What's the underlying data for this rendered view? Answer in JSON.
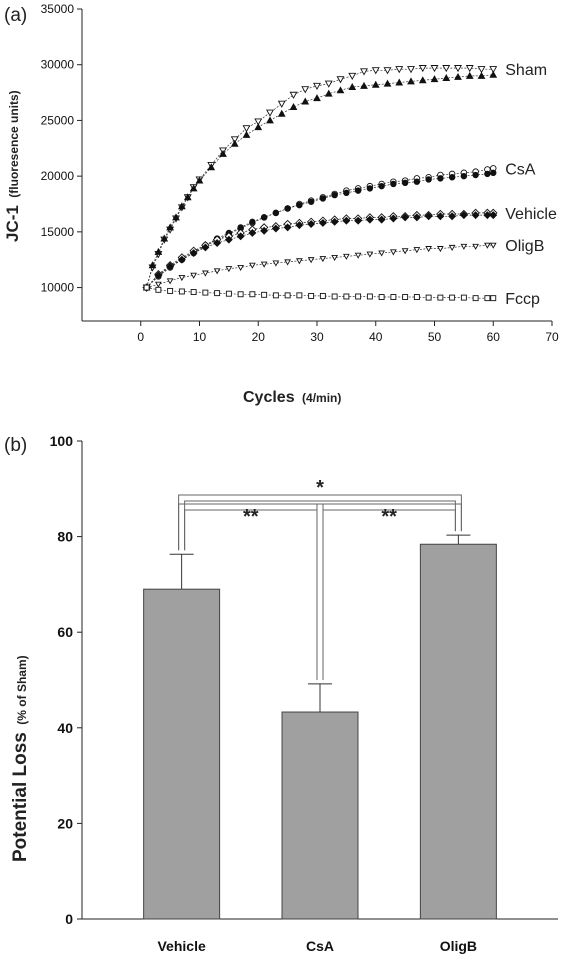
{
  "chart_data": [
    {
      "panel": "(a)",
      "type": "scatter",
      "ylabel_main": "JC-1",
      "ylabel_unit": "(fluoresence units)",
      "xlabel_main": "Cycles",
      "xlabel_unit": "(4/min)",
      "xlim": [
        -10,
        70
      ],
      "ylim": [
        7000,
        35000
      ],
      "xticks": [
        0,
        10,
        20,
        30,
        40,
        50,
        60,
        70
      ],
      "yticks": [
        10000,
        15000,
        20000,
        25000,
        30000,
        35000
      ],
      "series": [
        {
          "name": "Sham",
          "marker": "triangle-down-open",
          "values": [
            [
              1,
              10000
            ],
            [
              2,
              11800
            ],
            [
              3,
              13000
            ],
            [
              4,
              14300
            ],
            [
              5,
              15200
            ],
            [
              6,
              16200
            ],
            [
              7,
              17200
            ],
            [
              8,
              18100
            ],
            [
              9,
              19000
            ],
            [
              10,
              19700
            ],
            [
              12,
              21000
            ],
            [
              14,
              22300
            ],
            [
              16,
              23300
            ],
            [
              18,
              24300
            ],
            [
              20,
              24900
            ],
            [
              22,
              25700
            ],
            [
              24,
              26500
            ],
            [
              26,
              27300
            ],
            [
              28,
              27800
            ],
            [
              30,
              28100
            ],
            [
              32,
              28300
            ],
            [
              34,
              28700
            ],
            [
              36,
              29000
            ],
            [
              38,
              29400
            ],
            [
              40,
              29500
            ],
            [
              42,
              29500
            ],
            [
              44,
              29600
            ],
            [
              46,
              29600
            ],
            [
              48,
              29700
            ],
            [
              50,
              29700
            ],
            [
              52,
              29700
            ],
            [
              54,
              29700
            ],
            [
              56,
              29700
            ],
            [
              58,
              29600
            ],
            [
              60,
              29600
            ]
          ]
        },
        {
          "name": "",
          "marker": "triangle-up-filled",
          "values": [
            [
              1,
              10000
            ],
            [
              2,
              12000
            ],
            [
              3,
              13200
            ],
            [
              4,
              14400
            ],
            [
              5,
              15400
            ],
            [
              6,
              16300
            ],
            [
              7,
              17300
            ],
            [
              8,
              18100
            ],
            [
              9,
              18900
            ],
            [
              10,
              19600
            ],
            [
              12,
              20800
            ],
            [
              14,
              22000
            ],
            [
              16,
              22900
            ],
            [
              18,
              23700
            ],
            [
              20,
              24400
            ],
            [
              22,
              25000
            ],
            [
              24,
              25600
            ],
            [
              26,
              26200
            ],
            [
              28,
              26700
            ],
            [
              30,
              27000
            ],
            [
              32,
              27400
            ],
            [
              34,
              27700
            ],
            [
              36,
              28000
            ],
            [
              38,
              28100
            ],
            [
              40,
              28200
            ],
            [
              42,
              28300
            ],
            [
              44,
              28400
            ],
            [
              46,
              28500
            ],
            [
              48,
              28600
            ],
            [
              50,
              28700
            ],
            [
              52,
              28800
            ],
            [
              54,
              28900
            ],
            [
              56,
              29000
            ],
            [
              58,
              29000
            ],
            [
              60,
              29100
            ]
          ]
        },
        {
          "name": "CsA",
          "marker": "circle-open",
          "values": [
            [
              1,
              10000
            ],
            [
              3,
              11000
            ],
            [
              5,
              11800
            ],
            [
              7,
              12500
            ],
            [
              9,
              13100
            ],
            [
              11,
              13700
            ],
            [
              13,
              14300
            ],
            [
              15,
              14800
            ],
            [
              17,
              15300
            ],
            [
              19,
              15800
            ],
            [
              21,
              16300
            ],
            [
              23,
              16700
            ],
            [
              25,
              17100
            ],
            [
              27,
              17500
            ],
            [
              29,
              17800
            ],
            [
              31,
              18100
            ],
            [
              33,
              18400
            ],
            [
              35,
              18700
            ],
            [
              37,
              18900
            ],
            [
              39,
              19100
            ],
            [
              41,
              19300
            ],
            [
              43,
              19500
            ],
            [
              45,
              19600
            ],
            [
              47,
              19800
            ],
            [
              49,
              19900
            ],
            [
              51,
              20100
            ],
            [
              53,
              20200
            ],
            [
              55,
              20300
            ],
            [
              57,
              20400
            ],
            [
              59,
              20600
            ],
            [
              60,
              20700
            ]
          ]
        },
        {
          "name": "",
          "marker": "circle-filled",
          "values": [
            [
              1,
              10000
            ],
            [
              3,
              11100
            ],
            [
              5,
              11900
            ],
            [
              7,
              12600
            ],
            [
              9,
              13200
            ],
            [
              11,
              13800
            ],
            [
              13,
              14400
            ],
            [
              15,
              14900
            ],
            [
              17,
              15400
            ],
            [
              19,
              15900
            ],
            [
              21,
              16300
            ],
            [
              23,
              16700
            ],
            [
              25,
              17100
            ],
            [
              27,
              17400
            ],
            [
              29,
              17700
            ],
            [
              31,
              18000
            ],
            [
              33,
              18300
            ],
            [
              35,
              18500
            ],
            [
              37,
              18700
            ],
            [
              39,
              18900
            ],
            [
              41,
              19100
            ],
            [
              43,
              19300
            ],
            [
              45,
              19400
            ],
            [
              47,
              19500
            ],
            [
              49,
              19700
            ],
            [
              51,
              19800
            ],
            [
              53,
              19900
            ],
            [
              55,
              20000
            ],
            [
              57,
              20100
            ],
            [
              59,
              20200
            ],
            [
              60,
              20300
            ]
          ]
        },
        {
          "name": "Vehicle",
          "marker": "diamond-open",
          "values": [
            [
              1,
              10000
            ],
            [
              3,
              11200
            ],
            [
              5,
              12000
            ],
            [
              7,
              12700
            ],
            [
              9,
              13300
            ],
            [
              11,
              13800
            ],
            [
              13,
              14300
            ],
            [
              15,
              14600
            ],
            [
              17,
              14900
            ],
            [
              19,
              15200
            ],
            [
              21,
              15400
            ],
            [
              23,
              15500
            ],
            [
              25,
              15700
            ],
            [
              27,
              15800
            ],
            [
              29,
              15900
            ],
            [
              31,
              16000
            ],
            [
              33,
              16100
            ],
            [
              35,
              16200
            ],
            [
              37,
              16200
            ],
            [
              39,
              16300
            ],
            [
              41,
              16300
            ],
            [
              43,
              16400
            ],
            [
              45,
              16400
            ],
            [
              47,
              16500
            ],
            [
              49,
              16500
            ],
            [
              51,
              16600
            ],
            [
              53,
              16600
            ],
            [
              55,
              16600
            ],
            [
              57,
              16700
            ],
            [
              59,
              16700
            ],
            [
              60,
              16700
            ]
          ]
        },
        {
          "name": "",
          "marker": "diamond-filled",
          "values": [
            [
              1,
              10000
            ],
            [
              3,
              11100
            ],
            [
              5,
              11900
            ],
            [
              7,
              12500
            ],
            [
              9,
              13100
            ],
            [
              11,
              13600
            ],
            [
              13,
              14000
            ],
            [
              15,
              14300
            ],
            [
              17,
              14600
            ],
            [
              19,
              14900
            ],
            [
              21,
              15100
            ],
            [
              23,
              15300
            ],
            [
              25,
              15400
            ],
            [
              27,
              15600
            ],
            [
              29,
              15700
            ],
            [
              31,
              15800
            ],
            [
              33,
              15900
            ],
            [
              35,
              16000
            ],
            [
              37,
              16000
            ],
            [
              39,
              16100
            ],
            [
              41,
              16100
            ],
            [
              43,
              16200
            ],
            [
              45,
              16300
            ],
            [
              47,
              16300
            ],
            [
              49,
              16400
            ],
            [
              51,
              16400
            ],
            [
              53,
              16400
            ],
            [
              55,
              16500
            ],
            [
              57,
              16500
            ],
            [
              59,
              16500
            ],
            [
              60,
              16500
            ]
          ]
        },
        {
          "name": "OligB",
          "marker": "triangle-down-small",
          "values": [
            [
              1,
              10000
            ],
            [
              3,
              10300
            ],
            [
              5,
              10600
            ],
            [
              7,
              10900
            ],
            [
              9,
              11100
            ],
            [
              11,
              11300
            ],
            [
              13,
              11500
            ],
            [
              15,
              11700
            ],
            [
              17,
              11800
            ],
            [
              19,
              12000
            ],
            [
              21,
              12100
            ],
            [
              23,
              12200
            ],
            [
              25,
              12300
            ],
            [
              27,
              12400
            ],
            [
              29,
              12500
            ],
            [
              31,
              12600
            ],
            [
              33,
              12700
            ],
            [
              35,
              12800
            ],
            [
              37,
              12900
            ],
            [
              39,
              13000
            ],
            [
              41,
              13100
            ],
            [
              43,
              13200
            ],
            [
              45,
              13300
            ],
            [
              47,
              13400
            ],
            [
              49,
              13500
            ],
            [
              51,
              13500
            ],
            [
              53,
              13600
            ],
            [
              55,
              13700
            ],
            [
              57,
              13700
            ],
            [
              59,
              13800
            ],
            [
              60,
              13800
            ]
          ]
        },
        {
          "name": "Fccp",
          "marker": "square-open",
          "values": [
            [
              1,
              10000
            ],
            [
              3,
              9800
            ],
            [
              5,
              9700
            ],
            [
              7,
              9650
            ],
            [
              9,
              9600
            ],
            [
              11,
              9550
            ],
            [
              13,
              9500
            ],
            [
              15,
              9450
            ],
            [
              17,
              9400
            ],
            [
              19,
              9400
            ],
            [
              21,
              9350
            ],
            [
              23,
              9300
            ],
            [
              25,
              9300
            ],
            [
              27,
              9300
            ],
            [
              29,
              9250
            ],
            [
              31,
              9250
            ],
            [
              33,
              9200
            ],
            [
              35,
              9200
            ],
            [
              37,
              9200
            ],
            [
              39,
              9200
            ],
            [
              41,
              9150
            ],
            [
              43,
              9150
            ],
            [
              45,
              9150
            ],
            [
              47,
              9150
            ],
            [
              49,
              9100
            ],
            [
              51,
              9100
            ],
            [
              53,
              9100
            ],
            [
              55,
              9100
            ],
            [
              57,
              9050
            ],
            [
              59,
              9050
            ],
            [
              60,
              9050
            ]
          ]
        }
      ]
    },
    {
      "panel": "(b)",
      "type": "bar",
      "ylabel_main": "Potential Loss",
      "ylabel_unit": "(% of Sham)",
      "ylim": [
        0,
        100
      ],
      "yticks": [
        0,
        20,
        40,
        60,
        80,
        100
      ],
      "categories": [
        "Vehicle",
        "CsA",
        "OligB"
      ],
      "values": [
        69,
        43.3,
        78.4
      ],
      "errors": [
        7.3,
        5.9,
        1.9
      ],
      "bar_color": "#a0a0a0",
      "significance": [
        {
          "from": "Vehicle",
          "to": "CsA",
          "label": "**"
        },
        {
          "from": "CsA",
          "to": "OligB",
          "label": "**"
        },
        {
          "from": "Vehicle",
          "to": "OligB",
          "label": "*"
        }
      ]
    }
  ]
}
